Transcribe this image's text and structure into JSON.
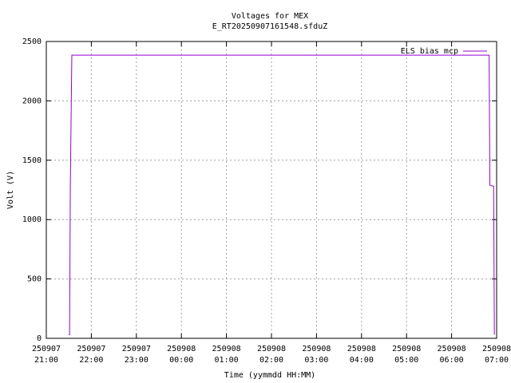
{
  "chart_data": {
    "type": "line",
    "title": "Voltages for MEX",
    "subtitle": "E_RT20250907161548.sfduZ",
    "x_label": "Time (yymmdd HH:MM)",
    "y_label": "Volt (V)",
    "series": [
      {
        "name": "ELS bias mcp",
        "color": "#9400d3",
        "x": [
          "250907 21:30",
          "250907 21:31",
          "250907 21:32",
          "250907 21:34",
          "250908 06:50",
          "250908 06:51",
          "250908 06:56",
          "250908 06:57"
        ],
        "values": [
          30,
          30,
          1280,
          2385,
          2385,
          1290,
          1280,
          30
        ]
      }
    ],
    "xlim": [
      "250907 21:00",
      "250908 07:00"
    ],
    "xticks": [
      {
        "value": "250907 21:00",
        "label": [
          "250907",
          "21:00"
        ]
      },
      {
        "value": "250907 22:00",
        "label": [
          "250907",
          "22:00"
        ]
      },
      {
        "value": "250907 23:00",
        "label": [
          "250907",
          "23:00"
        ]
      },
      {
        "value": "250908 00:00",
        "label": [
          "250908",
          "00:00"
        ]
      },
      {
        "value": "250908 01:00",
        "label": [
          "250908",
          "01:00"
        ]
      },
      {
        "value": "250908 02:00",
        "label": [
          "250908",
          "02:00"
        ]
      },
      {
        "value": "250908 03:00",
        "label": [
          "250908",
          "03:00"
        ]
      },
      {
        "value": "250908 04:00",
        "label": [
          "250908",
          "04:00"
        ]
      },
      {
        "value": "250908 05:00",
        "label": [
          "250908",
          "05:00"
        ]
      },
      {
        "value": "250908 06:00",
        "label": [
          "250908",
          "06:00"
        ]
      },
      {
        "value": "250908 07:00",
        "label": [
          "250908",
          "07:00"
        ]
      }
    ],
    "ylim": [
      0,
      2500
    ],
    "yticks": [
      0,
      500,
      1000,
      1500,
      2000,
      2500
    ],
    "grid": true,
    "legend": "upper right"
  }
}
